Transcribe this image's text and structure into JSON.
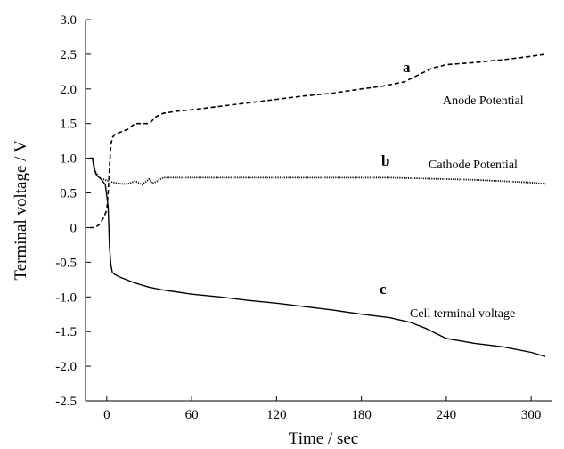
{
  "chart_data": {
    "type": "line",
    "xlabel": "Time / sec",
    "ylabel": "Terminal voltage / V",
    "xlim": [
      -15,
      315
    ],
    "ylim": [
      -2.5,
      3.0
    ],
    "xticks": [
      0,
      60,
      120,
      180,
      240,
      300
    ],
    "xtick_labels": [
      "0",
      "60",
      "120",
      "180",
      "240",
      "300"
    ],
    "yticks": [
      3.0,
      2.5,
      2.0,
      1.5,
      1.0,
      0.5,
      0,
      -0.5,
      -1.0,
      -1.5,
      -2.0,
      -2.5
    ],
    "ytick_labels": [
      "3.0",
      "2.5",
      "2.0",
      "1.5",
      "1.0",
      "0.5",
      "0",
      "-0.5",
      "-1.0",
      "-1.5",
      "-2.0",
      "-2.5"
    ],
    "grid": false,
    "series": [
      {
        "letter": "a",
        "name": "Anode Potential",
        "style": "dashed",
        "x": [
          -12,
          -8,
          -5,
          -2,
          0,
          1,
          2,
          3,
          4,
          6,
          10,
          15,
          20,
          25,
          30,
          35,
          40,
          50,
          60,
          80,
          100,
          120,
          140,
          160,
          180,
          195,
          210,
          220,
          230,
          240,
          260,
          280,
          300,
          310
        ],
        "y": [
          0.0,
          0.0,
          0.05,
          0.15,
          0.25,
          0.5,
          0.9,
          1.2,
          1.3,
          1.35,
          1.38,
          1.42,
          1.5,
          1.5,
          1.5,
          1.6,
          1.65,
          1.68,
          1.7,
          1.75,
          1.8,
          1.85,
          1.9,
          1.94,
          2.0,
          2.04,
          2.1,
          2.2,
          2.3,
          2.35,
          2.38,
          2.42,
          2.47,
          2.5
        ]
      },
      {
        "letter": "b",
        "name": "Cathode Potential",
        "style": "dotted",
        "x": [
          -12,
          -10,
          -8,
          -5,
          0,
          5,
          10,
          15,
          20,
          25,
          30,
          32,
          35,
          38,
          40,
          50,
          60,
          100,
          140,
          180,
          200,
          220,
          240,
          260,
          280,
          300,
          310
        ],
        "y": [
          1.0,
          1.0,
          0.8,
          0.72,
          0.68,
          0.65,
          0.63,
          0.63,
          0.67,
          0.62,
          0.7,
          0.64,
          0.66,
          0.7,
          0.72,
          0.72,
          0.72,
          0.72,
          0.72,
          0.72,
          0.72,
          0.71,
          0.7,
          0.69,
          0.67,
          0.65,
          0.63
        ]
      },
      {
        "letter": "c",
        "name": "Cell terminal voltage",
        "style": "solid",
        "x": [
          -12,
          -10,
          -9,
          -7,
          -4,
          -1,
          1,
          2,
          3,
          4,
          6,
          10,
          15,
          20,
          30,
          40,
          60,
          80,
          100,
          120,
          140,
          160,
          180,
          200,
          215,
          225,
          240,
          260,
          280,
          300,
          310
        ],
        "y": [
          1.0,
          1.0,
          0.85,
          0.75,
          0.7,
          0.62,
          0.3,
          -0.3,
          -0.55,
          -0.65,
          -0.68,
          -0.72,
          -0.76,
          -0.8,
          -0.86,
          -0.9,
          -0.96,
          -1.0,
          -1.05,
          -1.09,
          -1.14,
          -1.19,
          -1.25,
          -1.3,
          -1.37,
          -1.45,
          -1.6,
          -1.67,
          -1.72,
          -1.8,
          -1.86
        ]
      }
    ]
  }
}
